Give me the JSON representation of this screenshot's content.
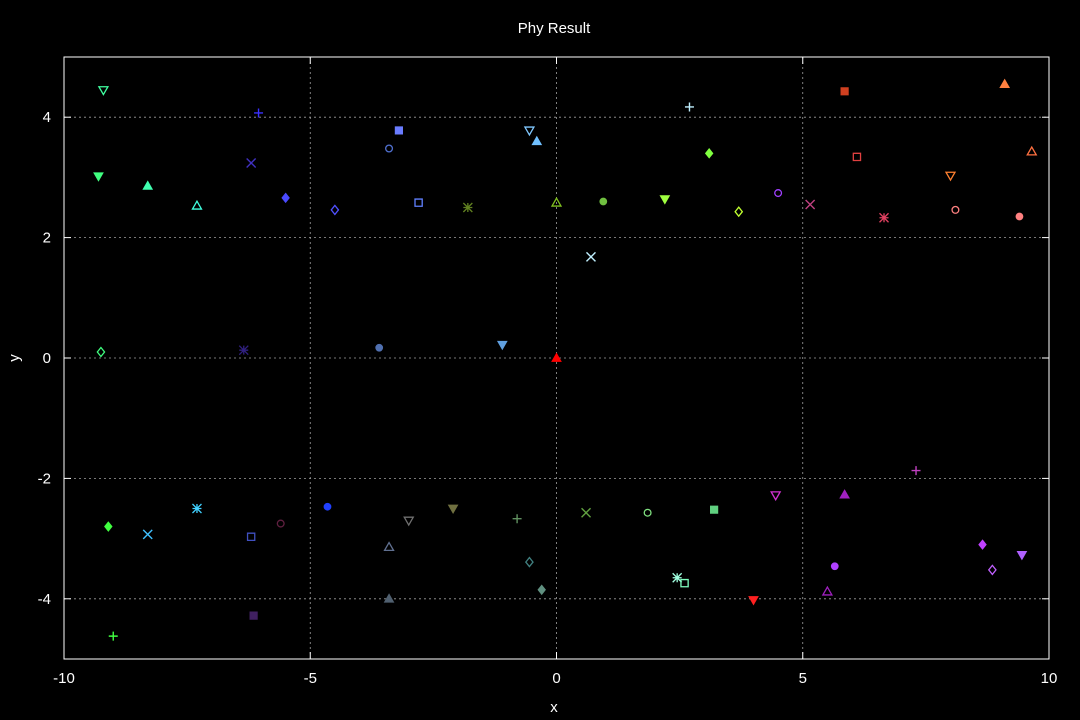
{
  "chart_data": {
    "type": "scatter",
    "title": "Phy Result",
    "xlabel": "x",
    "ylabel": "y",
    "xlim": [
      -10,
      10
    ],
    "ylim": [
      -5,
      5
    ],
    "xticks": [
      -10,
      -5,
      0,
      5,
      10
    ],
    "yticks": [
      -4,
      -2,
      0,
      2,
      4
    ],
    "grid": true,
    "colors": {
      "background": "#000000",
      "axes": "#ffffff",
      "grid": "#a0a0a0"
    },
    "points": [
      {
        "x": -9.2,
        "y": 4.45,
        "shape": "triangle-down",
        "color": "#40ffa0"
      },
      {
        "x": -6.05,
        "y": 4.07,
        "shape": "plus",
        "color": "#3a30ff"
      },
      {
        "x": -3.2,
        "y": 3.78,
        "shape": "square-filled",
        "color": "#6a7cff"
      },
      {
        "x": -0.55,
        "y": 3.78,
        "shape": "triangle-down",
        "color": "#80c8ff"
      },
      {
        "x": -0.4,
        "y": 3.6,
        "shape": "triangle-filled",
        "color": "#70c0ff"
      },
      {
        "x": 2.7,
        "y": 4.17,
        "shape": "plus",
        "color": "#c0f0ff"
      },
      {
        "x": 5.85,
        "y": 4.43,
        "shape": "square-filled",
        "color": "#d04020"
      },
      {
        "x": 9.1,
        "y": 4.55,
        "shape": "triangle-filled",
        "color": "#ff8040"
      },
      {
        "x": -6.2,
        "y": 3.24,
        "shape": "cross",
        "color": "#4030c0"
      },
      {
        "x": -3.4,
        "y": 3.48,
        "shape": "circle",
        "color": "#5070d0"
      },
      {
        "x": 3.1,
        "y": 3.4,
        "shape": "diamond-filled",
        "color": "#80ff40"
      },
      {
        "x": 6.1,
        "y": 3.34,
        "shape": "square",
        "color": "#e04040"
      },
      {
        "x": 9.65,
        "y": 3.43,
        "shape": "triangle",
        "color": "#ff7040"
      },
      {
        "x": -9.3,
        "y": 3.02,
        "shape": "triangle-down-filled",
        "color": "#40ff80"
      },
      {
        "x": -8.3,
        "y": 2.86,
        "shape": "triangle-filled",
        "color": "#40ffb0"
      },
      {
        "x": -7.3,
        "y": 2.53,
        "shape": "triangle",
        "color": "#40ffe0"
      },
      {
        "x": -5.5,
        "y": 2.66,
        "shape": "diamond-filled",
        "color": "#4a4aff"
      },
      {
        "x": -4.5,
        "y": 2.46,
        "shape": "diamond",
        "color": "#5050ff"
      },
      {
        "x": -2.8,
        "y": 2.58,
        "shape": "square",
        "color": "#6080ff"
      },
      {
        "x": -1.8,
        "y": 2.5,
        "shape": "star",
        "color": "#608020"
      },
      {
        "x": 0.0,
        "y": 2.58,
        "shape": "triangle",
        "color": "#80c020"
      },
      {
        "x": 0.95,
        "y": 2.6,
        "shape": "circle-filled",
        "color": "#70c040"
      },
      {
        "x": 2.2,
        "y": 2.64,
        "shape": "triangle-down-filled",
        "color": "#a0ff40"
      },
      {
        "x": 3.7,
        "y": 2.43,
        "shape": "diamond",
        "color": "#c0ff30"
      },
      {
        "x": 4.5,
        "y": 2.74,
        "shape": "circle",
        "color": "#a040ff"
      },
      {
        "x": 5.15,
        "y": 2.55,
        "shape": "cross",
        "color": "#c04080"
      },
      {
        "x": 6.65,
        "y": 2.33,
        "shape": "star",
        "color": "#e04060"
      },
      {
        "x": 8.0,
        "y": 3.03,
        "shape": "triangle-down",
        "color": "#ff8030"
      },
      {
        "x": 8.1,
        "y": 2.46,
        "shape": "circle",
        "color": "#ff8080"
      },
      {
        "x": 9.4,
        "y": 2.35,
        "shape": "circle-filled",
        "color": "#ff8080"
      },
      {
        "x": 0.7,
        "y": 1.68,
        "shape": "cross",
        "color": "#c0f0ff"
      },
      {
        "x": -9.25,
        "y": 0.1,
        "shape": "diamond",
        "color": "#40ff80"
      },
      {
        "x": -6.35,
        "y": 0.13,
        "shape": "star",
        "color": "#302080"
      },
      {
        "x": -3.6,
        "y": 0.17,
        "shape": "circle-filled",
        "color": "#5070b0"
      },
      {
        "x": -1.1,
        "y": 0.22,
        "shape": "triangle-down-filled",
        "color": "#60a0e0"
      },
      {
        "x": 0.0,
        "y": 0.0,
        "shape": "triangle-filled",
        "color": "#ff0000"
      },
      {
        "x": 7.3,
        "y": -1.87,
        "shape": "plus",
        "color": "#c040c0"
      },
      {
        "x": -9.1,
        "y": -2.8,
        "shape": "diamond-filled",
        "color": "#40ff40"
      },
      {
        "x": -8.3,
        "y": -2.93,
        "shape": "cross",
        "color": "#40c0ff"
      },
      {
        "x": -7.3,
        "y": -2.5,
        "shape": "star",
        "color": "#40d0ff"
      },
      {
        "x": -6.2,
        "y": -2.97,
        "shape": "square",
        "color": "#4050c0"
      },
      {
        "x": -5.6,
        "y": -2.75,
        "shape": "circle",
        "color": "#602040"
      },
      {
        "x": -4.65,
        "y": -2.47,
        "shape": "circle-filled",
        "color": "#2040ff"
      },
      {
        "x": -3.0,
        "y": -2.7,
        "shape": "triangle-down",
        "color": "#707070"
      },
      {
        "x": -2.1,
        "y": -2.5,
        "shape": "triangle-down-filled",
        "color": "#707040"
      },
      {
        "x": -0.8,
        "y": -2.67,
        "shape": "plus",
        "color": "#609060"
      },
      {
        "x": 0.6,
        "y": -2.57,
        "shape": "cross",
        "color": "#60a040"
      },
      {
        "x": 1.85,
        "y": -2.57,
        "shape": "circle",
        "color": "#80e080"
      },
      {
        "x": 3.2,
        "y": -2.52,
        "shape": "square-filled",
        "color": "#60d080"
      },
      {
        "x": 4.45,
        "y": -2.28,
        "shape": "triangle-down",
        "color": "#d030d0"
      },
      {
        "x": 5.85,
        "y": -2.27,
        "shape": "triangle-filled",
        "color": "#a020c0"
      },
      {
        "x": -3.4,
        "y": -3.14,
        "shape": "triangle",
        "color": "#607090"
      },
      {
        "x": -3.4,
        "y": -4.0,
        "shape": "triangle-filled",
        "color": "#506070"
      },
      {
        "x": -0.55,
        "y": -3.39,
        "shape": "diamond",
        "color": "#408080"
      },
      {
        "x": -0.3,
        "y": -3.85,
        "shape": "diamond-filled",
        "color": "#609080"
      },
      {
        "x": 2.45,
        "y": -3.65,
        "shape": "star",
        "color": "#a0ffe0"
      },
      {
        "x": 2.6,
        "y": -3.74,
        "shape": "square",
        "color": "#80ffc0"
      },
      {
        "x": -9.0,
        "y": -4.62,
        "shape": "plus",
        "color": "#40ff40"
      },
      {
        "x": -6.15,
        "y": -4.28,
        "shape": "square-filled",
        "color": "#402060"
      },
      {
        "x": 4.0,
        "y": -4.02,
        "shape": "triangle-down-filled",
        "color": "#ff2020"
      },
      {
        "x": 5.65,
        "y": -3.46,
        "shape": "circle-filled",
        "color": "#b040ff"
      },
      {
        "x": 5.5,
        "y": -3.88,
        "shape": "triangle",
        "color": "#a020c0"
      },
      {
        "x": 8.65,
        "y": -3.1,
        "shape": "diamond-filled",
        "color": "#c040ff"
      },
      {
        "x": 8.85,
        "y": -3.52,
        "shape": "diamond",
        "color": "#c060ff"
      },
      {
        "x": 9.45,
        "y": -3.27,
        "shape": "triangle-down-filled",
        "color": "#b060ff"
      }
    ]
  }
}
